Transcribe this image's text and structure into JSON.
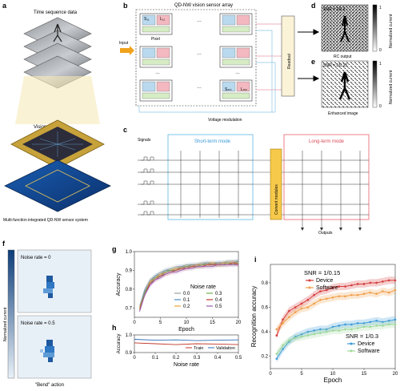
{
  "panels": {
    "a": {
      "label": "a",
      "time_sequence": "Time sequence data",
      "vision_sensor": "Vision sensor",
      "caption": "Multi-function integrated QD-NW sensor system"
    },
    "b": {
      "label": "b",
      "title": "QD-NW vision sensor array",
      "input": "Input",
      "pixel": "Pixel",
      "s11": "S₁₁",
      "l11": "L₁₁",
      "smn": "Sₘₙ",
      "lmn": "Lₘₙ",
      "dots": "…",
      "readout": "Readout",
      "voltage": "Voltage modulation"
    },
    "d": {
      "label": "d",
      "snr": "SNR = 1/0.3",
      "caption": "RC output",
      "colorbar_title": "Normalized current",
      "cb_max": "1",
      "cb_min": "0"
    },
    "e": {
      "label": "e",
      "snr": "SNR = 1/0.15",
      "caption": "Enhanced image",
      "colorbar_title": "Normalized current",
      "cb_max": "1",
      "cb_min": "0"
    },
    "c": {
      "label": "c",
      "signals": "Signals",
      "short_term": "Short-term mode",
      "long_term": "Long-term mode",
      "convert": "Convert modules",
      "outputs": "Outputs"
    },
    "f": {
      "label": "f",
      "noise0": "Noise rate = 0",
      "noise05": "Noise rate = 0.5",
      "colorbar_title": "Normalized current",
      "caption": "\"Bend\" action"
    },
    "g": {
      "label": "g"
    },
    "h": {
      "label": "h"
    },
    "i": {
      "label": "i"
    }
  },
  "chart_data": [
    {
      "id": "g",
      "type": "line",
      "xlabel": "Epoch",
      "ylabel": "Accuracy",
      "xlim": [
        0,
        20
      ],
      "ylim": [
        0.65,
        1.0
      ],
      "xticks": [
        0,
        5,
        10,
        15,
        20
      ],
      "yticks": [
        0.7,
        0.8,
        0.9,
        1.0
      ],
      "ytick_labels": [
        "0.7",
        "0.8",
        "0.9",
        "1.0"
      ],
      "legend_title": "Noise rate",
      "legend_placement": "bottom-right",
      "x": [
        1,
        2,
        3,
        4,
        5,
        6,
        7,
        8,
        9,
        10,
        11,
        12,
        13,
        14,
        15,
        16,
        17,
        18,
        19,
        20
      ],
      "series": [
        {
          "name": "0.0",
          "color": "#9aa0a6",
          "values": [
            0.71,
            0.8,
            0.85,
            0.87,
            0.89,
            0.9,
            0.91,
            0.92,
            0.92,
            0.93,
            0.93,
            0.93,
            0.94,
            0.94,
            0.94,
            0.94,
            0.94,
            0.95,
            0.95,
            0.95
          ]
        },
        {
          "name": "0.1",
          "color": "#4a90c8",
          "values": [
            0.7,
            0.79,
            0.84,
            0.87,
            0.88,
            0.9,
            0.9,
            0.91,
            0.92,
            0.92,
            0.93,
            0.93,
            0.93,
            0.94,
            0.93,
            0.94,
            0.94,
            0.94,
            0.94,
            0.95
          ]
        },
        {
          "name": "0.2",
          "color": "#e8a33a",
          "values": [
            0.7,
            0.78,
            0.84,
            0.86,
            0.88,
            0.89,
            0.9,
            0.91,
            0.91,
            0.92,
            0.92,
            0.93,
            0.93,
            0.93,
            0.94,
            0.93,
            0.94,
            0.94,
            0.94,
            0.94
          ]
        },
        {
          "name": "0.3",
          "color": "#6ab04c",
          "values": [
            0.69,
            0.78,
            0.83,
            0.86,
            0.87,
            0.89,
            0.9,
            0.9,
            0.91,
            0.92,
            0.92,
            0.92,
            0.93,
            0.93,
            0.93,
            0.93,
            0.93,
            0.94,
            0.93,
            0.94
          ]
        },
        {
          "name": "0.4",
          "color": "#c0392b",
          "values": [
            0.69,
            0.77,
            0.83,
            0.85,
            0.87,
            0.88,
            0.89,
            0.9,
            0.91,
            0.91,
            0.92,
            0.92,
            0.92,
            0.93,
            0.93,
            0.93,
            0.93,
            0.93,
            0.94,
            0.93
          ]
        },
        {
          "name": "0.5",
          "color": "#9b59b6",
          "values": [
            0.68,
            0.77,
            0.82,
            0.85,
            0.86,
            0.88,
            0.89,
            0.89,
            0.9,
            0.91,
            0.91,
            0.92,
            0.92,
            0.92,
            0.92,
            0.93,
            0.93,
            0.93,
            0.93,
            0.93
          ]
        }
      ]
    },
    {
      "id": "h",
      "type": "line",
      "xlabel": "Noise rate",
      "ylabel": "Accuracy",
      "xlim": [
        0,
        0.5
      ],
      "ylim": [
        0.9,
        1.0
      ],
      "xticks": [
        0,
        0.1,
        0.2,
        0.3,
        0.4,
        0.5
      ],
      "xtick_labels": [
        "0",
        "0.1",
        "0.2",
        "0.3",
        "0.4",
        "0.5"
      ],
      "yticks": [
        0.9,
        1.0
      ],
      "ytick_labels": [
        "0.9",
        "1.0"
      ],
      "legend_placement": "bottom-right",
      "x": [
        0,
        0.1,
        0.2,
        0.3,
        0.4,
        0.5
      ],
      "series": [
        {
          "name": "Train",
          "color": "#c0392b",
          "values": [
            0.955,
            0.95,
            0.945,
            0.95,
            0.948,
            0.945
          ]
        },
        {
          "name": "Validation",
          "color": "#2e6db4",
          "values": [
            0.975,
            0.97,
            0.972,
            0.968,
            0.97,
            0.972
          ]
        }
      ]
    },
    {
      "id": "i",
      "type": "line",
      "xlabel": "Epoch",
      "ylabel": "Recognition accuracy",
      "xlim": [
        0,
        20
      ],
      "ylim": [
        0.1,
        0.95
      ],
      "xticks": [
        0,
        5,
        10,
        15,
        20
      ],
      "yticks": [
        0.2,
        0.4,
        0.6,
        0.8
      ],
      "ytick_labels": [
        "0.2",
        "0.4",
        "0.6",
        "0.8"
      ],
      "group_labels": [
        "SNR = 1/0.15",
        "SNR = 1/0.3"
      ],
      "x": [
        1,
        2,
        3,
        4,
        5,
        6,
        7,
        8,
        9,
        10,
        11,
        12,
        13,
        14,
        15,
        16,
        17,
        18,
        19,
        20
      ],
      "series": [
        {
          "name": "Device",
          "group": "SNR = 1/0.15",
          "color": "#d63c3c",
          "marker": "circle",
          "values": [
            0.37,
            0.5,
            0.57,
            0.6,
            0.63,
            0.66,
            0.7,
            0.73,
            0.74,
            0.76,
            0.77,
            0.77,
            0.78,
            0.79,
            0.79,
            0.8,
            0.8,
            0.81,
            0.82,
            0.82
          ]
        },
        {
          "name": "Software",
          "group": "SNR = 1/0.15",
          "color": "#f0a04b",
          "marker": "circle",
          "values": [
            0.42,
            0.47,
            0.52,
            0.56,
            0.59,
            0.6,
            0.63,
            0.66,
            0.67,
            0.68,
            0.69,
            0.69,
            0.7,
            0.7,
            0.71,
            0.72,
            0.71,
            0.73,
            0.72,
            0.74
          ]
        },
        {
          "name": "Device",
          "group": "SNR = 1/0.3",
          "color": "#3a9ad9",
          "marker": "circle",
          "values": [
            0.18,
            0.26,
            0.32,
            0.36,
            0.38,
            0.4,
            0.41,
            0.42,
            0.42,
            0.44,
            0.45,
            0.46,
            0.46,
            0.47,
            0.47,
            0.48,
            0.49,
            0.48,
            0.49,
            0.5
          ]
        },
        {
          "name": "Software",
          "group": "SNR = 1/0.3",
          "color": "#9fd99a",
          "marker": "circle",
          "values": [
            0.22,
            0.29,
            0.33,
            0.35,
            0.36,
            0.37,
            0.38,
            0.39,
            0.4,
            0.41,
            0.41,
            0.42,
            0.42,
            0.43,
            0.44,
            0.44,
            0.45,
            0.45,
            0.46,
            0.46
          ]
        }
      ]
    }
  ]
}
